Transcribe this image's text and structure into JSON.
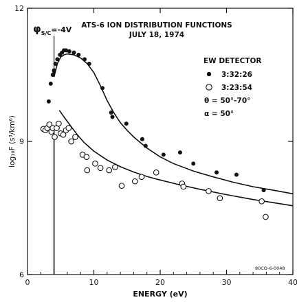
{
  "chart_data": {
    "type": "scatter",
    "title": "ATS-6 ION DISTRIBUTION FUNCTIONS",
    "subtitle": "JULY 18, 1974",
    "xlabel": "ENERGY (eV)",
    "ylabel": "log₁₀F (s³/km⁶)",
    "xlim": [
      0,
      40
    ],
    "ylim": [
      6,
      12
    ],
    "xticks": [
      0,
      10,
      20,
      30,
      40
    ],
    "xtick_labels": [
      "0",
      "10",
      "20",
      "30",
      "40"
    ],
    "yticks": [
      6,
      9,
      12
    ],
    "ytick_labels": [
      "6",
      "9",
      "12"
    ],
    "grid": false,
    "legend_placement": "top-right",
    "legend": {
      "title": "EW DETECTOR",
      "entries": [
        {
          "marker": "filled-circle",
          "label": "3:32:26"
        },
        {
          "marker": "open-circle",
          "label": "3:23:54"
        }
      ],
      "params": [
        "θ = 50°-70°",
        "α = 50°"
      ]
    },
    "annotation": {
      "label": "φS/C=-4V",
      "phi": "φ",
      "sub": "S/C",
      "rest": "=-4V",
      "x": 4
    },
    "code": "80CO-6-0048",
    "series": [
      {
        "marker": "filled",
        "points": [
          [
            3.2,
            9.9
          ],
          [
            3.5,
            10.3
          ],
          [
            3.8,
            10.5
          ],
          [
            4.0,
            10.6
          ],
          [
            4.2,
            10.75
          ],
          [
            4.5,
            10.85
          ],
          [
            4.9,
            10.95
          ],
          [
            5.2,
            11.0
          ],
          [
            5.5,
            11.05
          ],
          [
            5.8,
            11.05
          ],
          [
            6.3,
            11.03
          ],
          [
            7.0,
            11.0
          ],
          [
            7.7,
            10.95
          ],
          [
            8.6,
            10.85
          ],
          [
            9.3,
            10.75
          ],
          [
            11.3,
            10.2
          ],
          [
            12.6,
            9.65
          ],
          [
            12.8,
            9.55
          ],
          [
            14.9,
            9.4
          ],
          [
            17.3,
            9.05
          ],
          [
            17.8,
            8.9
          ],
          [
            20.5,
            8.7
          ],
          [
            23.0,
            8.75
          ],
          [
            25.0,
            8.5
          ],
          [
            28.5,
            8.3
          ],
          [
            31.5,
            8.25
          ],
          [
            35.6,
            7.9
          ]
        ]
      },
      {
        "marker": "open",
        "points": [
          [
            2.4,
            9.28
          ],
          [
            2.7,
            9.25
          ],
          [
            3.0,
            9.3
          ],
          [
            3.3,
            9.38
          ],
          [
            3.6,
            9.22
          ],
          [
            3.8,
            9.3
          ],
          [
            4.1,
            9.1
          ],
          [
            4.4,
            9.3
          ],
          [
            4.7,
            9.4
          ],
          [
            5.0,
            9.18
          ],
          [
            5.4,
            9.15
          ],
          [
            5.8,
            9.25
          ],
          [
            6.2,
            9.3
          ],
          [
            6.6,
            9.0
          ],
          [
            7.2,
            9.1
          ],
          [
            8.3,
            8.7
          ],
          [
            8.9,
            8.65
          ],
          [
            9.0,
            8.35
          ],
          [
            10.2,
            8.5
          ],
          [
            11.0,
            8.4
          ],
          [
            12.3,
            8.35
          ],
          [
            13.2,
            8.42
          ],
          [
            14.2,
            8.0
          ],
          [
            16.2,
            8.1
          ],
          [
            17.2,
            8.2
          ],
          [
            19.4,
            8.3
          ],
          [
            23.3,
            8.05
          ],
          [
            23.5,
            7.98
          ],
          [
            27.3,
            7.88
          ],
          [
            29.0,
            7.72
          ],
          [
            35.3,
            7.65
          ],
          [
            35.9,
            7.3
          ]
        ]
      }
    ],
    "fit_curves": [
      {
        "for": "filled",
        "points": [
          [
            4.0,
            10.45
          ],
          [
            4.5,
            10.75
          ],
          [
            5.0,
            10.9
          ],
          [
            5.5,
            10.95
          ],
          [
            6.0,
            10.97
          ],
          [
            7.0,
            10.95
          ],
          [
            8.0,
            10.88
          ],
          [
            9.0,
            10.75
          ],
          [
            10.0,
            10.55
          ],
          [
            11.0,
            10.25
          ],
          [
            12.0,
            9.92
          ],
          [
            13.0,
            9.65
          ],
          [
            14.0,
            9.42
          ],
          [
            15.0,
            9.25
          ],
          [
            16.0,
            9.1
          ],
          [
            18.0,
            8.85
          ],
          [
            20.0,
            8.65
          ],
          [
            22.0,
            8.5
          ],
          [
            25.0,
            8.33
          ],
          [
            28.0,
            8.2
          ],
          [
            31.0,
            8.08
          ],
          [
            34.0,
            7.98
          ],
          [
            37.0,
            7.9
          ],
          [
            40.0,
            7.82
          ]
        ]
      },
      {
        "for": "open",
        "points": [
          [
            4.8,
            9.7
          ],
          [
            5.5,
            9.55
          ],
          [
            6.5,
            9.35
          ],
          [
            7.5,
            9.15
          ],
          [
            8.5,
            8.98
          ],
          [
            10.0,
            8.78
          ],
          [
            12.0,
            8.58
          ],
          [
            14.0,
            8.43
          ],
          [
            16.0,
            8.31
          ],
          [
            18.0,
            8.21
          ],
          [
            20.0,
            8.13
          ],
          [
            23.0,
            8.02
          ],
          [
            26.0,
            7.92
          ],
          [
            30.0,
            7.8
          ],
          [
            34.0,
            7.69
          ],
          [
            37.0,
            7.62
          ],
          [
            40.0,
            7.55
          ]
        ]
      }
    ]
  }
}
